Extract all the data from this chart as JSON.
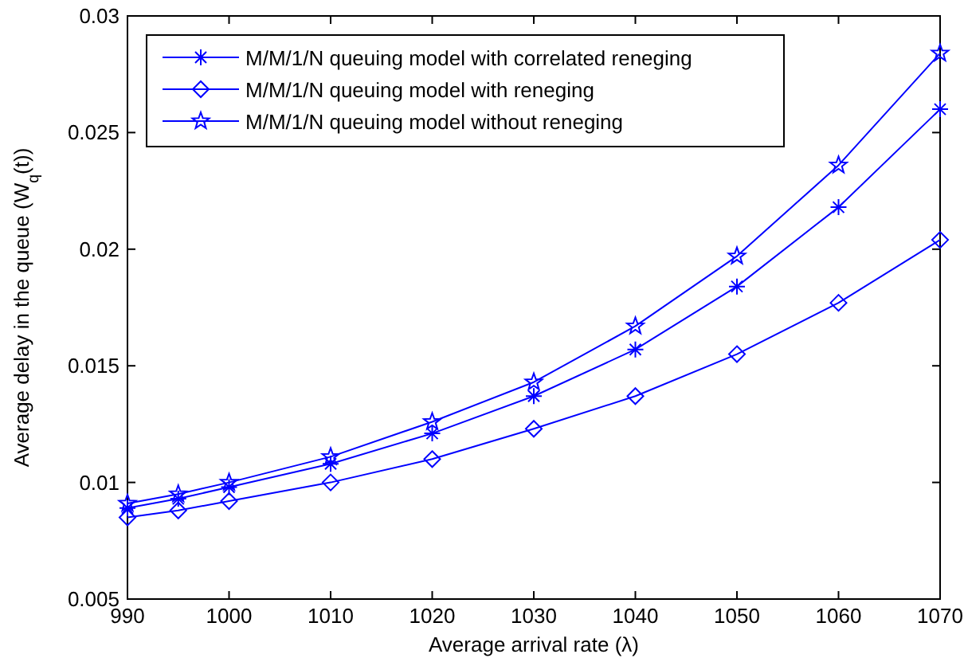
{
  "chart_data": {
    "type": "line",
    "xlabel": "Average arrival rate (λ)",
    "ylabel": "Average delay in the queue (W$_{q}$(t))",
    "x": [
      990,
      995,
      1000,
      1010,
      1020,
      1030,
      1040,
      1050,
      1060,
      1070
    ],
    "series": [
      {
        "name": "M/M/1/N queuing model with correlated reneging",
        "color": "#0000ff",
        "marker": "cross",
        "values": [
          0.0089,
          0.0093,
          0.0098,
          0.0108,
          0.0121,
          0.0137,
          0.0157,
          0.0184,
          0.0218,
          0.026
        ]
      },
      {
        "name": "M/M/1/N queuing model with reneging",
        "color": "#0000ff",
        "marker": "diamond",
        "values": [
          0.0085,
          0.0088,
          0.0092,
          0.01,
          0.011,
          0.0123,
          0.0137,
          0.0155,
          0.0177,
          0.0204
        ]
      },
      {
        "name": "M/M/1/N queuing model without reneging",
        "color": "#0000ff",
        "marker": "star",
        "values": [
          0.0091,
          0.0095,
          0.01,
          0.0111,
          0.0126,
          0.0143,
          0.0167,
          0.0197,
          0.0236,
          0.0284
        ]
      }
    ],
    "xlim": [
      990,
      1070
    ],
    "xticks": [
      990,
      1000,
      1010,
      1020,
      1030,
      1040,
      1050,
      1060,
      1070
    ],
    "ylim": [
      0.005,
      0.03
    ],
    "yticks": [
      0.005,
      0.01,
      0.015,
      0.02,
      0.025,
      0.03
    ],
    "grid": false,
    "legend": "top left",
    "line_style": "solid"
  }
}
